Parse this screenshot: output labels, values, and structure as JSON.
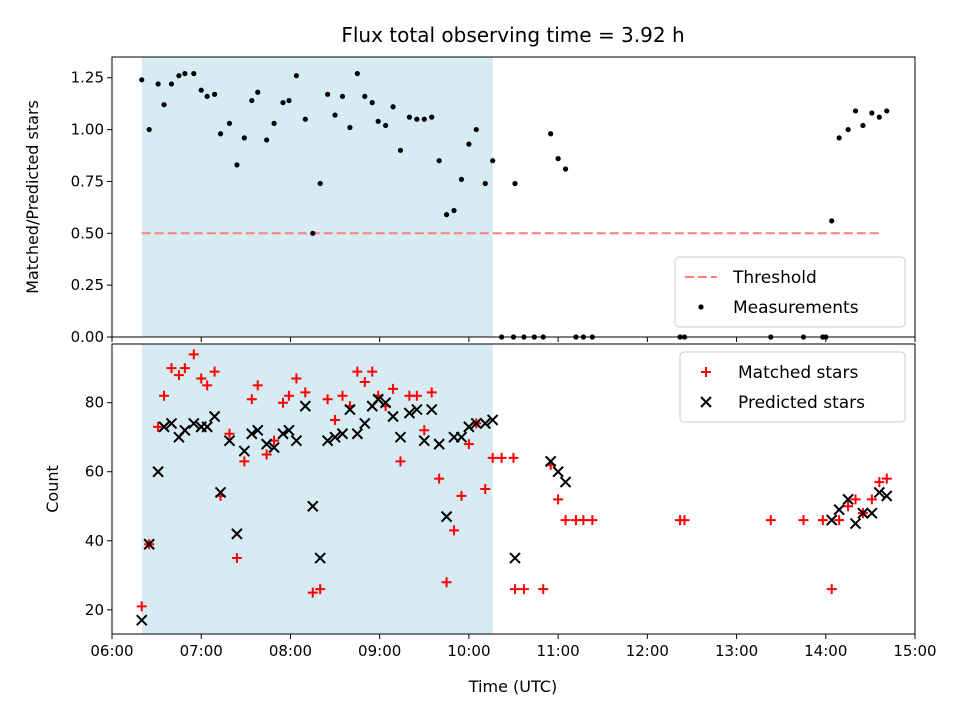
{
  "figure": {
    "title": "Flux total observing time = 3.92 h",
    "xlabel": "Time (UTC)"
  },
  "chart_data": [
    {
      "type": "scatter",
      "ylabel": "Matched/Predicted stars",
      "xlim": [
        "06:00",
        "15:00"
      ],
      "ylim": [
        0,
        1.35
      ],
      "yticks": [
        "0.00",
        "0.25",
        "0.50",
        "0.75",
        "1.00",
        "1.25"
      ],
      "shaded_span": [
        "06:20",
        "10:16"
      ],
      "shade_color": "#add8e6",
      "threshold": {
        "name": "Threshold",
        "y": 0.5,
        "x_range": [
          "06:20",
          "14:37"
        ],
        "color": "#ff7f7f",
        "style": "dashed"
      },
      "legend": {
        "placement": "lower-right",
        "entries": [
          "Threshold",
          "Measurements"
        ]
      },
      "series": [
        {
          "name": "Measurements",
          "marker": "dot",
          "color": "#000000",
          "points": [
            [
              "06:20",
              1.24
            ],
            [
              "06:25",
              1.0
            ],
            [
              "06:31",
              1.22
            ],
            [
              "06:35",
              1.12
            ],
            [
              "06:40",
              1.22
            ],
            [
              "06:45",
              1.26
            ],
            [
              "06:49",
              1.27
            ],
            [
              "06:55",
              1.27
            ],
            [
              "07:00",
              1.19
            ],
            [
              "07:04",
              1.16
            ],
            [
              "07:09",
              1.17
            ],
            [
              "07:13",
              0.98
            ],
            [
              "07:19",
              1.03
            ],
            [
              "07:24",
              0.83
            ],
            [
              "07:29",
              0.96
            ],
            [
              "07:34",
              1.14
            ],
            [
              "07:38",
              1.18
            ],
            [
              "07:44",
              0.95
            ],
            [
              "07:49",
              1.03
            ],
            [
              "07:55",
              1.13
            ],
            [
              "07:59",
              1.14
            ],
            [
              "08:04",
              1.26
            ],
            [
              "08:10",
              1.05
            ],
            [
              "08:15",
              0.5
            ],
            [
              "08:20",
              0.74
            ],
            [
              "08:25",
              1.17
            ],
            [
              "08:30",
              1.07
            ],
            [
              "08:35",
              1.16
            ],
            [
              "08:40",
              1.01
            ],
            [
              "08:45",
              1.27
            ],
            [
              "08:50",
              1.16
            ],
            [
              "08:55",
              1.13
            ],
            [
              "08:59",
              1.04
            ],
            [
              "09:04",
              1.02
            ],
            [
              "09:09",
              1.11
            ],
            [
              "09:14",
              0.9
            ],
            [
              "09:20",
              1.06
            ],
            [
              "09:25",
              1.05
            ],
            [
              "09:30",
              1.05
            ],
            [
              "09:35",
              1.06
            ],
            [
              "09:40",
              0.85
            ],
            [
              "09:45",
              0.59
            ],
            [
              "09:50",
              0.61
            ],
            [
              "09:55",
              0.76
            ],
            [
              "10:00",
              0.93
            ],
            [
              "10:05",
              1.0
            ],
            [
              "10:11",
              0.74
            ],
            [
              "10:16",
              0.85
            ],
            [
              "10:22",
              0.0
            ],
            [
              "10:30",
              0.0
            ],
            [
              "10:37",
              0.0
            ],
            [
              "10:44",
              0.0
            ],
            [
              "10:50",
              0.0
            ],
            [
              "10:55",
              0.98
            ],
            [
              "11:00",
              0.86
            ],
            [
              "11:05",
              0.81
            ],
            [
              "11:12",
              0.0
            ],
            [
              "11:17",
              0.0
            ],
            [
              "11:23",
              0.0
            ],
            [
              "10:31",
              0.74
            ],
            [
              "12:22",
              0.0
            ],
            [
              "12:25",
              0.0
            ],
            [
              "13:23",
              0.0
            ],
            [
              "13:45",
              0.0
            ],
            [
              "13:58",
              0.0
            ],
            [
              "14:00",
              0.0
            ],
            [
              "14:04",
              0.56
            ],
            [
              "14:09",
              0.96
            ],
            [
              "14:15",
              1.0
            ],
            [
              "14:20",
              1.09
            ],
            [
              "14:25",
              1.02
            ],
            [
              "14:31",
              1.08
            ],
            [
              "14:36",
              1.06
            ],
            [
              "14:41",
              1.09
            ]
          ]
        }
      ]
    },
    {
      "type": "scatter",
      "ylabel": "Count",
      "xlim": [
        "06:00",
        "15:00"
      ],
      "ylim": [
        13,
        97
      ],
      "yticks": [
        "20",
        "40",
        "60",
        "80"
      ],
      "xticks": [
        "06:00",
        "07:00",
        "08:00",
        "09:00",
        "10:00",
        "11:00",
        "12:00",
        "13:00",
        "14:00",
        "15:00"
      ],
      "shaded_span": [
        "06:20",
        "10:16"
      ],
      "shade_color": "#add8e6",
      "legend": {
        "placement": "top-right",
        "entries": [
          "Matched stars",
          "Predicted stars"
        ]
      },
      "series": [
        {
          "name": "Matched stars",
          "marker": "plus",
          "color": "#ff0000",
          "points": [
            [
              "06:20",
              21
            ],
            [
              "06:25",
              39
            ],
            [
              "06:31",
              73
            ],
            [
              "06:35",
              82
            ],
            [
              "06:40",
              90
            ],
            [
              "06:45",
              88
            ],
            [
              "06:49",
              90
            ],
            [
              "06:55",
              94
            ],
            [
              "07:00",
              87
            ],
            [
              "07:04",
              85
            ],
            [
              "07:09",
              89
            ],
            [
              "07:13",
              53
            ],
            [
              "07:19",
              71
            ],
            [
              "07:24",
              35
            ],
            [
              "07:29",
              63
            ],
            [
              "07:34",
              81
            ],
            [
              "07:38",
              85
            ],
            [
              "07:44",
              65
            ],
            [
              "07:49",
              69
            ],
            [
              "07:55",
              80
            ],
            [
              "07:59",
              82
            ],
            [
              "08:04",
              87
            ],
            [
              "08:10",
              83
            ],
            [
              "08:15",
              25
            ],
            [
              "08:20",
              26
            ],
            [
              "08:25",
              81
            ],
            [
              "08:30",
              75
            ],
            [
              "08:35",
              82
            ],
            [
              "08:40",
              79
            ],
            [
              "08:45",
              89
            ],
            [
              "08:50",
              86
            ],
            [
              "08:55",
              89
            ],
            [
              "08:59",
              82
            ],
            [
              "09:04",
              79
            ],
            [
              "09:09",
              84
            ],
            [
              "09:14",
              63
            ],
            [
              "09:20",
              82
            ],
            [
              "09:25",
              82
            ],
            [
              "09:30",
              72
            ],
            [
              "09:35",
              83
            ],
            [
              "09:40",
              58
            ],
            [
              "09:45",
              28
            ],
            [
              "09:50",
              43
            ],
            [
              "09:55",
              53
            ],
            [
              "10:00",
              68
            ],
            [
              "10:05",
              74
            ],
            [
              "10:11",
              55
            ],
            [
              "10:16",
              64
            ],
            [
              "10:22",
              64
            ],
            [
              "10:30",
              64
            ],
            [
              "10:31",
              26
            ],
            [
              "10:37",
              26
            ],
            [
              "10:50",
              26
            ],
            [
              "10:55",
              62
            ],
            [
              "11:00",
              52
            ],
            [
              "11:05",
              46
            ],
            [
              "11:12",
              46
            ],
            [
              "11:17",
              46
            ],
            [
              "11:23",
              46
            ],
            [
              "12:22",
              46
            ],
            [
              "12:25",
              46
            ],
            [
              "13:23",
              46
            ],
            [
              "13:45",
              46
            ],
            [
              "13:58",
              46
            ],
            [
              "14:04",
              26
            ],
            [
              "14:09",
              46
            ],
            [
              "14:15",
              50
            ],
            [
              "14:20",
              52
            ],
            [
              "14:25",
              48
            ],
            [
              "14:31",
              52
            ],
            [
              "14:36",
              57
            ],
            [
              "14:41",
              58
            ]
          ]
        },
        {
          "name": "Predicted stars",
          "marker": "x",
          "color": "#000000",
          "points": [
            [
              "06:20",
              17
            ],
            [
              "06:25",
              39
            ],
            [
              "06:31",
              60
            ],
            [
              "06:35",
              73
            ],
            [
              "06:40",
              74
            ],
            [
              "06:45",
              70
            ],
            [
              "06:49",
              72
            ],
            [
              "06:55",
              74
            ],
            [
              "07:00",
              73
            ],
            [
              "07:04",
              73
            ],
            [
              "07:09",
              76
            ],
            [
              "07:13",
              54
            ],
            [
              "07:19",
              69
            ],
            [
              "07:24",
              42
            ],
            [
              "07:29",
              66
            ],
            [
              "07:34",
              71
            ],
            [
              "07:38",
              72
            ],
            [
              "07:44",
              68
            ],
            [
              "07:49",
              67
            ],
            [
              "07:55",
              71
            ],
            [
              "07:59",
              72
            ],
            [
              "08:04",
              69
            ],
            [
              "08:10",
              79
            ],
            [
              "08:15",
              50
            ],
            [
              "08:20",
              35
            ],
            [
              "08:25",
              69
            ],
            [
              "08:30",
              70
            ],
            [
              "08:35",
              71
            ],
            [
              "08:40",
              78
            ],
            [
              "08:45",
              71
            ],
            [
              "08:50",
              74
            ],
            [
              "08:55",
              79
            ],
            [
              "08:59",
              81
            ],
            [
              "09:04",
              80
            ],
            [
              "09:09",
              76
            ],
            [
              "09:14",
              70
            ],
            [
              "09:20",
              77
            ],
            [
              "09:25",
              78
            ],
            [
              "09:30",
              69
            ],
            [
              "09:35",
              78
            ],
            [
              "09:40",
              68
            ],
            [
              "09:45",
              47
            ],
            [
              "09:50",
              70
            ],
            [
              "09:55",
              70
            ],
            [
              "10:00",
              73
            ],
            [
              "10:05",
              74
            ],
            [
              "10:11",
              74
            ],
            [
              "10:16",
              75
            ],
            [
              "10:31",
              35
            ],
            [
              "10:55",
              63
            ],
            [
              "11:00",
              60
            ],
            [
              "11:05",
              57
            ],
            [
              "14:04",
              46
            ],
            [
              "14:09",
              49
            ],
            [
              "14:15",
              52
            ],
            [
              "14:20",
              45
            ],
            [
              "14:25",
              48
            ],
            [
              "14:31",
              48
            ],
            [
              "14:36",
              54
            ],
            [
              "14:41",
              53
            ]
          ]
        }
      ]
    }
  ]
}
